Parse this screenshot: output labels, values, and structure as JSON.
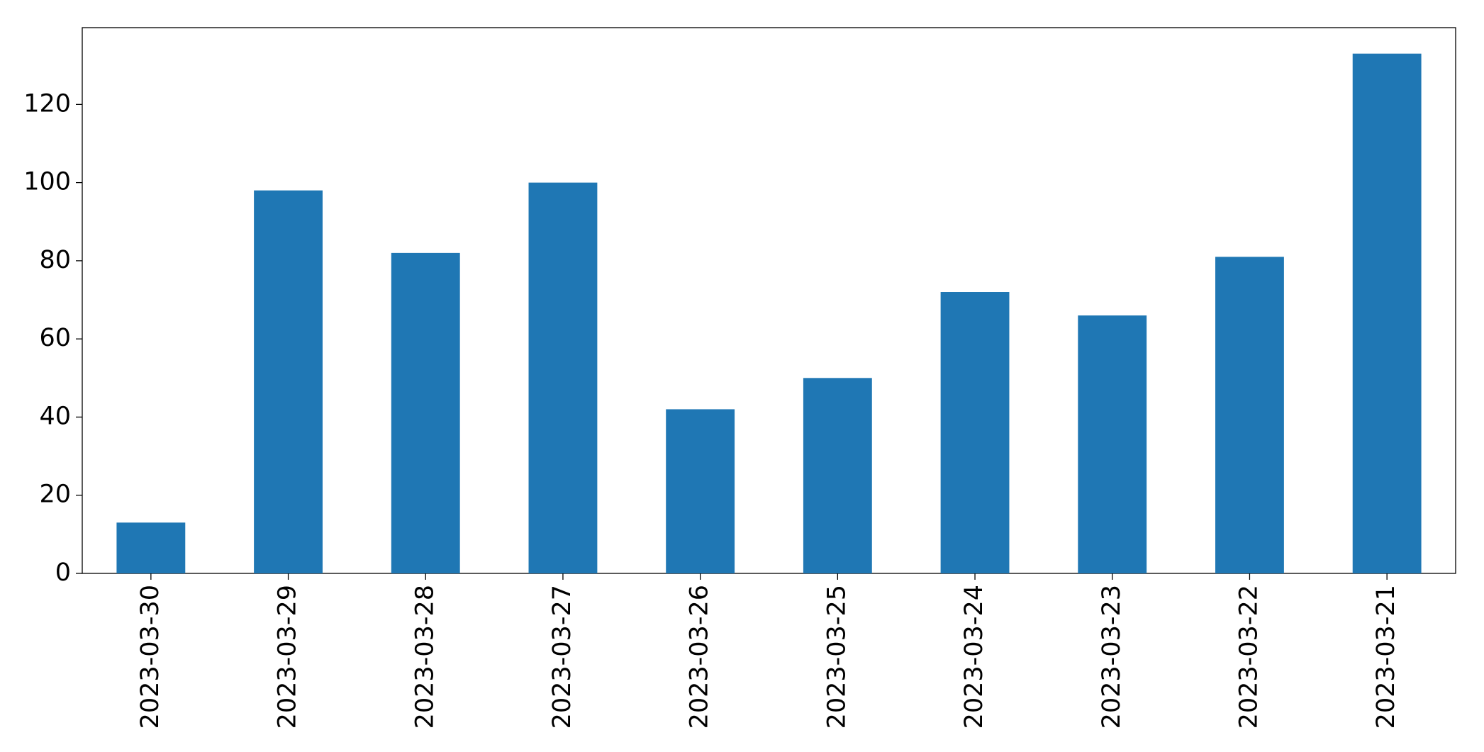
{
  "chart_data": {
    "type": "bar",
    "categories": [
      "2023-03-30",
      "2023-03-29",
      "2023-03-28",
      "2023-03-27",
      "2023-03-26",
      "2023-03-25",
      "2023-03-24",
      "2023-03-23",
      "2023-03-22",
      "2023-03-21"
    ],
    "values": [
      13,
      98,
      82,
      100,
      42,
      50,
      72,
      66,
      81,
      133
    ],
    "color": "#1f77b4",
    "ylim": [
      0,
      139.65
    ],
    "yticks": [
      0,
      20,
      40,
      60,
      80,
      100,
      120
    ],
    "grid": false
  }
}
